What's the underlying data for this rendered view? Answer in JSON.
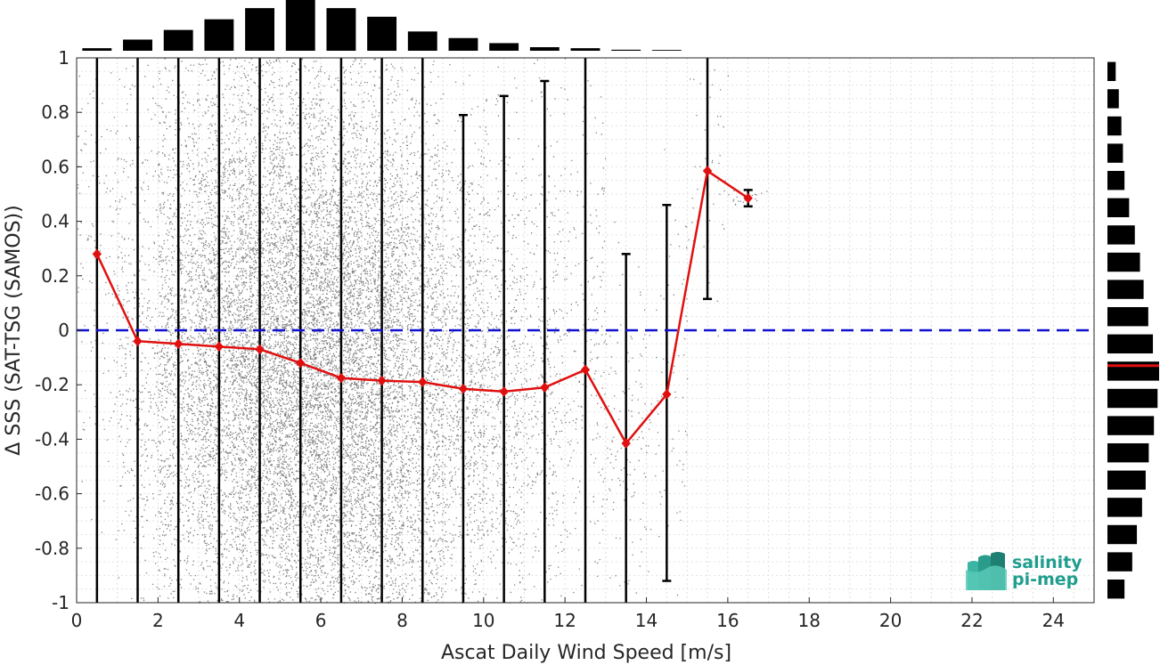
{
  "chart_data": {
    "type": "scatter",
    "xlabel": "Ascat Daily Wind Speed [m/s]",
    "ylabel": "Δ SSS (SAT-TSG (SAMOS))",
    "xlim": [
      0,
      25
    ],
    "ylim": [
      -1,
      1
    ],
    "x_ticks": [
      0,
      2,
      4,
      6,
      8,
      10,
      12,
      14,
      16,
      18,
      20,
      22,
      24
    ],
    "y_ticks": [
      1,
      0.8,
      0.6,
      0.4,
      0.2,
      0,
      -0.2,
      -0.4,
      -0.6,
      -0.8,
      -1
    ],
    "y_tick_labels": [
      "1",
      "0.8",
      "0.6",
      "0.4",
      "0.2",
      "0",
      "-0.2",
      "-0.4",
      "-0.6",
      "-0.8",
      "-1"
    ],
    "grid": true,
    "reference_line": {
      "y": 0,
      "style": "dashed",
      "color": "#1010d0"
    },
    "colors": {
      "scatter": "#808080",
      "mean": "#e01010",
      "errorbar": "#000000",
      "histogram": "#000000",
      "median_marker": "#e01010"
    },
    "mean_series": {
      "x": [
        0.5,
        1.5,
        2.5,
        3.5,
        4.5,
        5.5,
        6.5,
        7.5,
        8.5,
        9.5,
        10.5,
        11.5,
        12.5,
        13.5,
        14.5,
        15.5,
        16.5
      ],
      "y": [
        0.28,
        -0.04,
        -0.05,
        -0.06,
        -0.07,
        -0.12,
        -0.175,
        -0.185,
        -0.19,
        -0.215,
        -0.225,
        -0.21,
        -0.145,
        -0.415,
        -0.235,
        0.585,
        0.485
      ]
    },
    "error_bars": {
      "x": [
        0.5,
        1.5,
        2.5,
        3.5,
        4.5,
        5.5,
        6.5,
        7.5,
        8.5,
        9.5,
        10.5,
        11.5,
        12.5,
        13.5,
        14.5,
        15.5,
        16.5
      ],
      "lower": [
        -1,
        -1,
        -1,
        -1,
        -1,
        -1,
        -1,
        -1,
        -1,
        -1,
        -1,
        -1,
        -1,
        -1,
        -0.92,
        0.115,
        0.455
      ],
      "upper": [
        1,
        1,
        1,
        1,
        1,
        1,
        1,
        1,
        1,
        0.79,
        0.86,
        0.915,
        1,
        0.28,
        0.46,
        1,
        0.515
      ]
    },
    "scatter_density": {
      "x": [
        0.5,
        1.5,
        2.5,
        3.5,
        4.5,
        5.5,
        6.5,
        7.5,
        8.5,
        9.5,
        10.5,
        11.5,
        12.5,
        13.5,
        14.5,
        15.5,
        16.5
      ],
      "relative_count": [
        0.05,
        0.15,
        0.45,
        0.7,
        0.9,
        1.0,
        0.95,
        0.8,
        0.5,
        0.32,
        0.22,
        0.14,
        0.08,
        0.05,
        0.03,
        0.02,
        0.01
      ]
    },
    "top_histogram": {
      "x": [
        0.5,
        1.5,
        2.5,
        3.5,
        4.5,
        5.5,
        6.5,
        7.5,
        8.5,
        9.5,
        10.5,
        11.5,
        12.5,
        13.5,
        14.5,
        15.5,
        16.5
      ],
      "relative_count": [
        0.05,
        0.22,
        0.41,
        0.62,
        0.84,
        1.0,
        0.84,
        0.67,
        0.38,
        0.25,
        0.15,
        0.07,
        0.05,
        0.02,
        0.015,
        0.0,
        0.0
      ]
    },
    "right_histogram": {
      "y": [
        0.95,
        0.85,
        0.75,
        0.65,
        0.55,
        0.45,
        0.35,
        0.25,
        0.15,
        0.05,
        -0.05,
        -0.15,
        -0.25,
        -0.35,
        -0.45,
        -0.55,
        -0.65,
        -0.75,
        -0.85,
        -0.95
      ],
      "relative_count": [
        0.16,
        0.22,
        0.27,
        0.3,
        0.33,
        0.42,
        0.53,
        0.63,
        0.7,
        0.79,
        0.88,
        1.0,
        0.97,
        0.9,
        0.8,
        0.74,
        0.67,
        0.57,
        0.48,
        0.33
      ],
      "median": -0.13
    }
  },
  "logo": {
    "line1": "salinity",
    "line2": "pi-mep"
  }
}
